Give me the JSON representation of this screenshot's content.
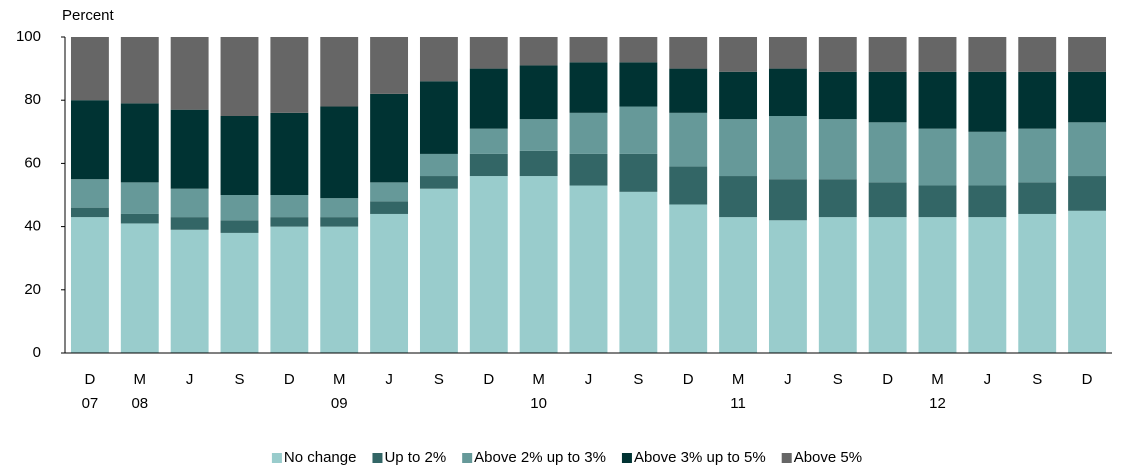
{
  "chart_data": {
    "type": "stacked_bar",
    "y_axis_label": "Percent",
    "categories": [
      "D",
      "M",
      "J",
      "S",
      "D",
      "M",
      "J",
      "S",
      "D",
      "M",
      "J",
      "S",
      "D",
      "M",
      "J",
      "S",
      "D",
      "M",
      "J",
      "S",
      "D"
    ],
    "category_groups": [
      "07",
      "08",
      null,
      null,
      null,
      "09",
      null,
      null,
      null,
      "10",
      null,
      null,
      null,
      "11",
      null,
      null,
      null,
      "12",
      null,
      null,
      null
    ],
    "series": [
      {
        "name": "No change",
        "color": "#99cccc",
        "values": [
          43,
          41,
          39,
          38,
          40,
          40,
          44,
          52,
          56,
          56,
          53,
          51,
          47,
          43,
          42,
          43,
          43,
          43,
          43,
          44,
          45
        ]
      },
      {
        "name": "Up to 2%",
        "color": "#336666",
        "values": [
          3,
          3,
          4,
          4,
          3,
          3,
          4,
          4,
          7,
          8,
          10,
          12,
          12,
          13,
          13,
          12,
          11,
          10,
          10,
          10,
          11
        ]
      },
      {
        "name": "Above 2% up to 3%",
        "color": "#669999",
        "values": [
          9,
          10,
          9,
          8,
          7,
          6,
          6,
          7,
          8,
          10,
          13,
          15,
          17,
          18,
          20,
          19,
          19,
          18,
          17,
          17,
          17
        ]
      },
      {
        "name": "Above 3% up to 5%",
        "color": "#003333",
        "values": [
          25,
          25,
          25,
          25,
          26,
          29,
          28,
          23,
          19,
          17,
          16,
          14,
          14,
          15,
          15,
          15,
          16,
          18,
          19,
          18,
          16
        ]
      },
      {
        "name": "Above 5%",
        "color": "#666666",
        "values": [
          20,
          21,
          23,
          25,
          24,
          22,
          18,
          14,
          10,
          9,
          8,
          8,
          10,
          11,
          10,
          11,
          11,
          11,
          11,
          11,
          11
        ]
      }
    ],
    "ylim": [
      0,
      100
    ],
    "yticks": [
      0,
      20,
      40,
      60,
      80,
      100
    ],
    "grid": false,
    "legend": "bottom"
  }
}
